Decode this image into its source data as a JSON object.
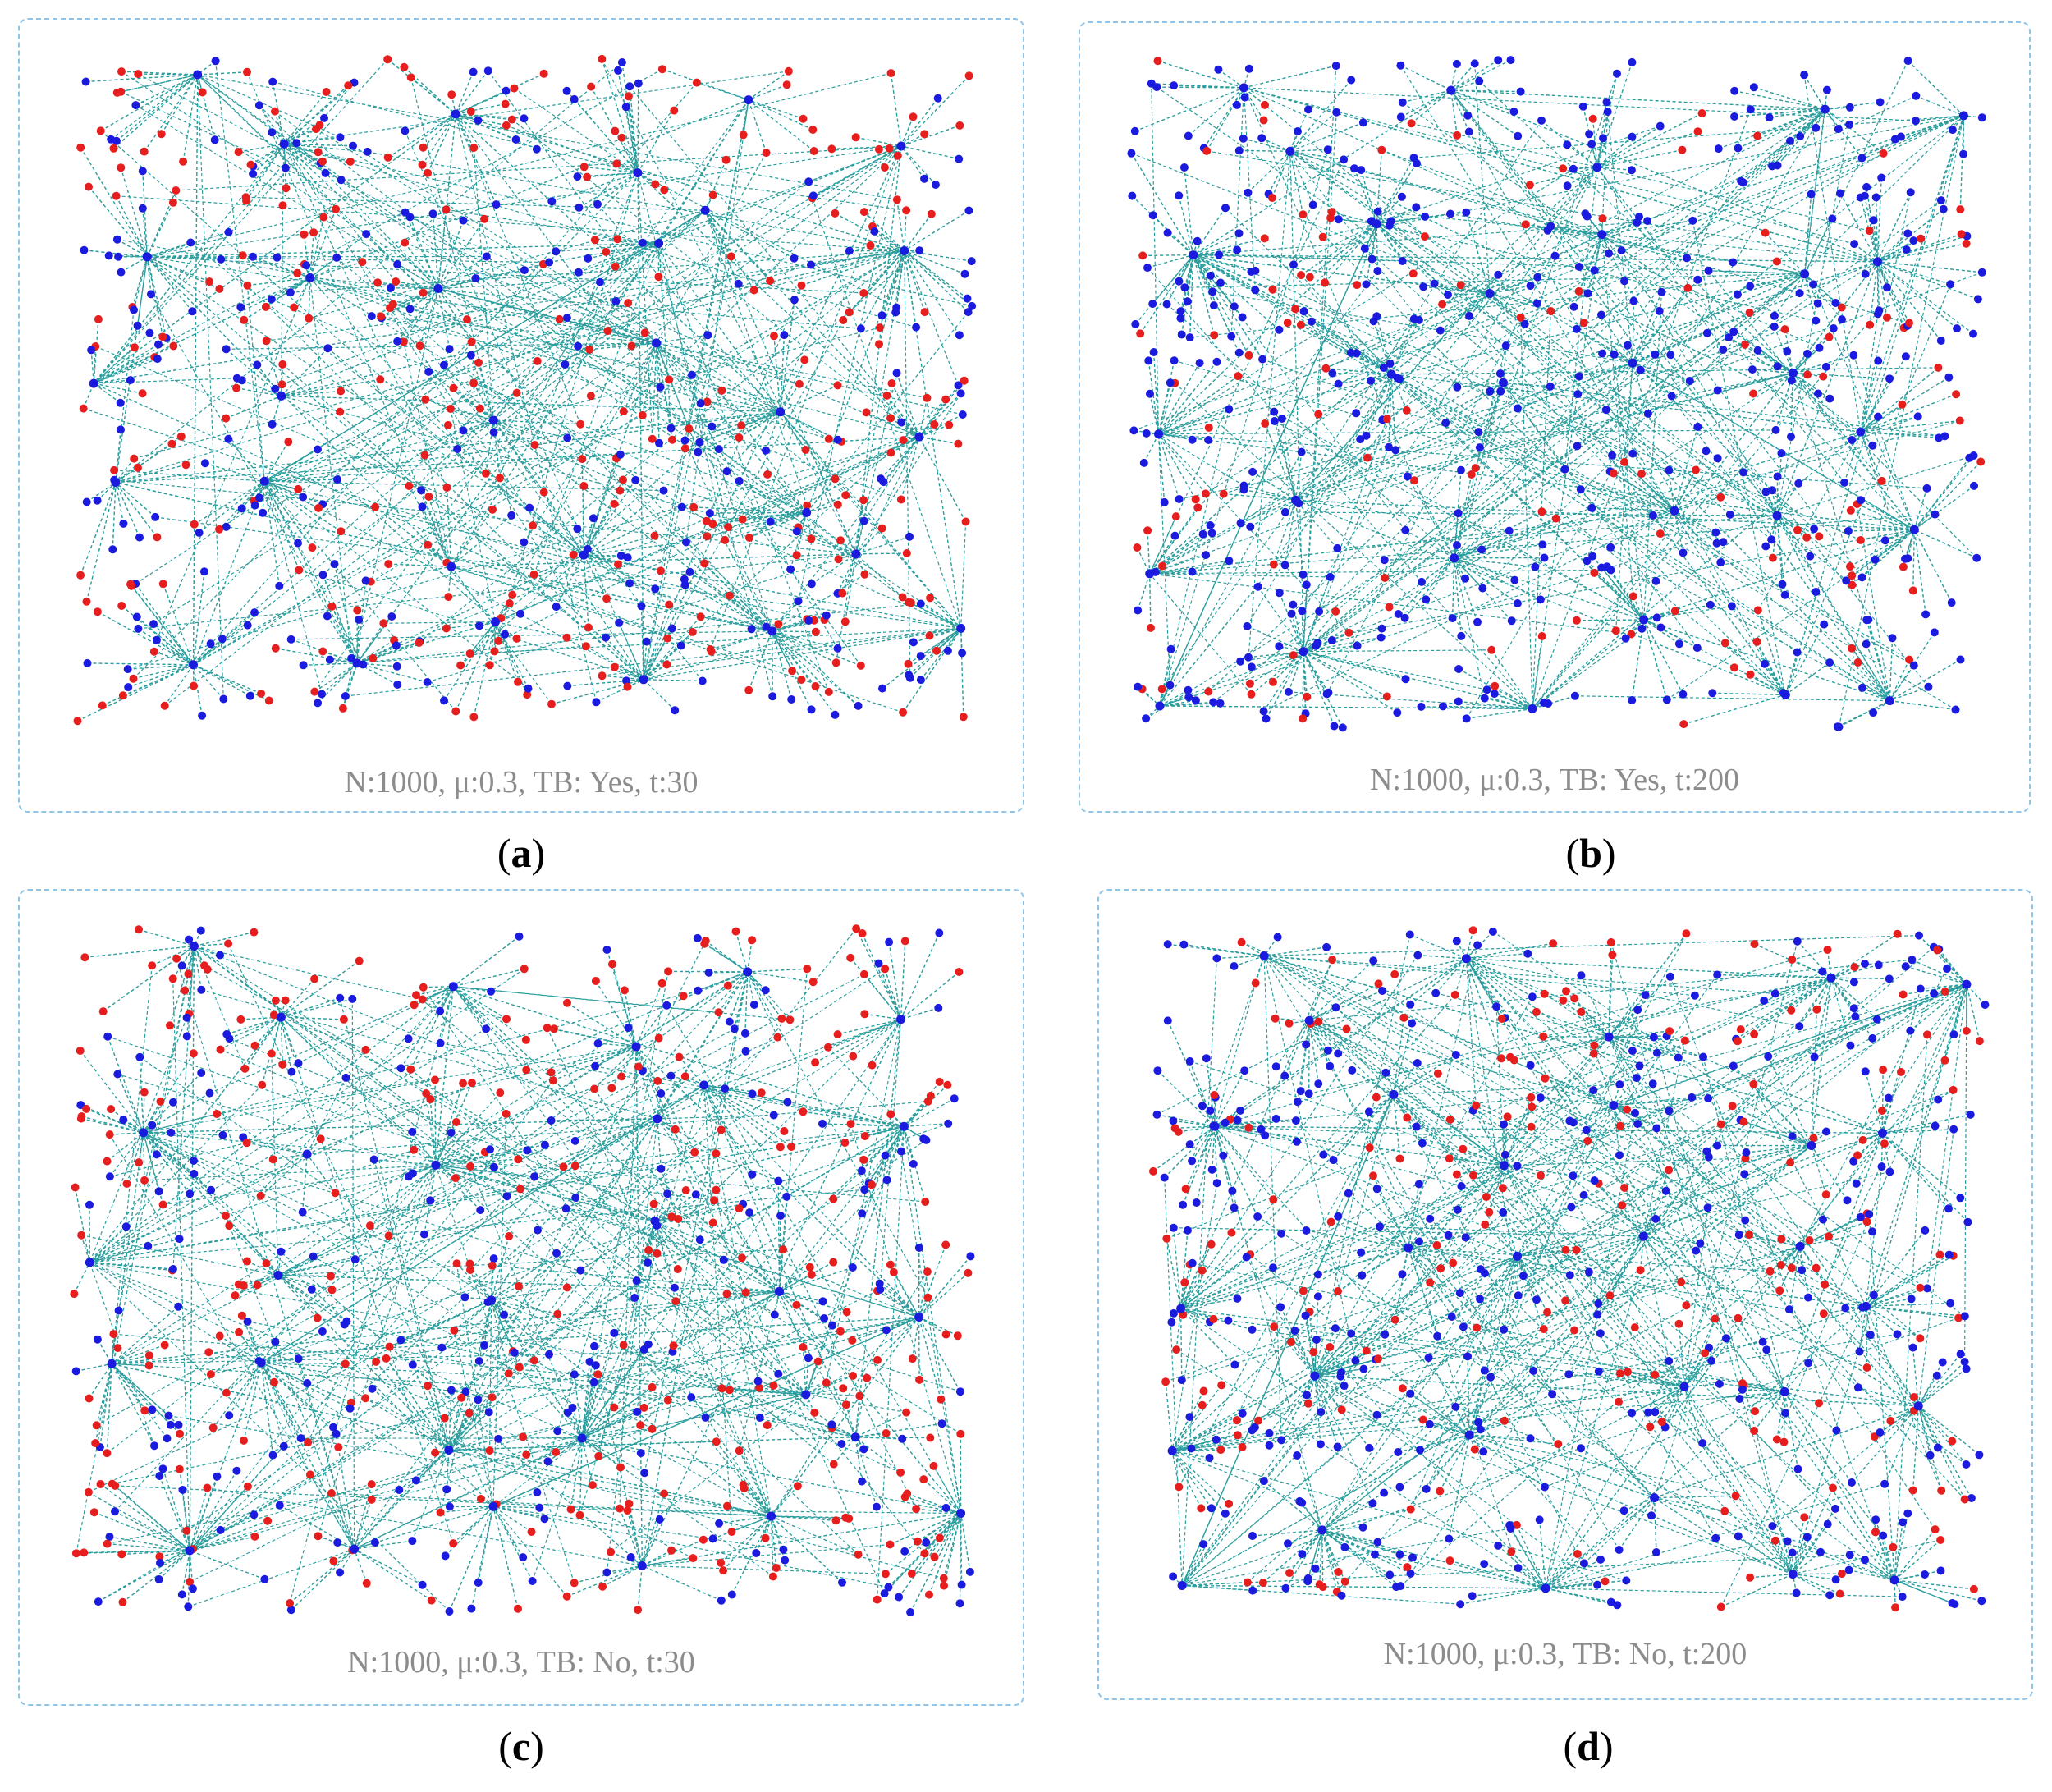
{
  "colors": {
    "edge": "#2a9d9d",
    "node_state_a": "#1b1be0",
    "node_state_b": "#e61e1e",
    "panel_border": "#8ec5e8",
    "caption": "#8c8c8c"
  },
  "panels": [
    {
      "id": "a",
      "label": "a",
      "caption": "N:1000, μ:0.3, TB: Yes, t:30",
      "blue_fraction": 0.45
    },
    {
      "id": "b",
      "label": "b",
      "caption": "N:1000, μ:0.3, TB: Yes, t:200",
      "blue_fraction": 0.78
    },
    {
      "id": "c",
      "label": "c",
      "caption": "N:1000, μ:0.3, TB: No, t:30",
      "blue_fraction": 0.45
    },
    {
      "id": "d",
      "label": "d",
      "caption": "N:1000, μ:0.3, TB: No, t:200",
      "blue_fraction": 0.62
    }
  ]
}
